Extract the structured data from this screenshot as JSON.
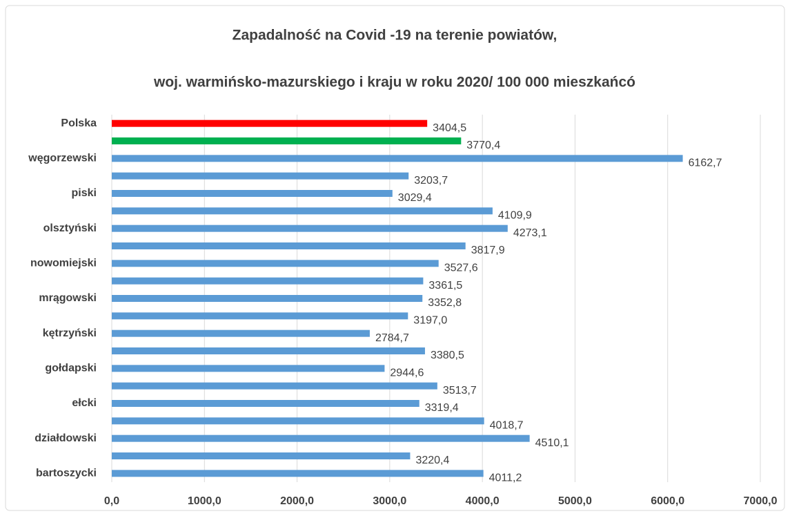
{
  "chart_data": {
    "type": "bar",
    "orientation": "horizontal",
    "title": [
      "Zapadalność na Covid -19 na terenie powiatów,",
      "woj. warmińsko-mazurskiego i kraju w roku 2020/ 100 000 mieszkańcó"
    ],
    "categories": [
      "Polska",
      null,
      "węgorzewski",
      null,
      "piski",
      null,
      "olsztyński",
      null,
      "nowomiejski",
      null,
      "mrągowski",
      null,
      "kętrzyński",
      null,
      "gołdapski",
      null,
      "ełcki",
      null,
      "działdowski",
      null,
      "bartoszycki"
    ],
    "values": [
      3404.5,
      3770.4,
      6162.7,
      3203.7,
      3029.4,
      4109.9,
      4273.1,
      3817.9,
      3527.6,
      3361.5,
      3352.8,
      3197.0,
      2784.7,
      3380.5,
      2944.6,
      3513.7,
      3319.4,
      4018.7,
      4510.1,
      3220.4,
      4011.2
    ],
    "value_labels": [
      "3404,5",
      "3770,4",
      "6162,7",
      "3203,7",
      "3029,4",
      "4109,9",
      "4273,1",
      "3817,9",
      "3527,6",
      "3361,5",
      "3352,8",
      "3197,0",
      "2784,7",
      "3380,5",
      "2944,6",
      "3513,7",
      "3319,4",
      "4018,7",
      "4510,1",
      "3220,4",
      "4011,2"
    ],
    "colors": [
      "#ff0000",
      "#00b050",
      "#5b9bd5",
      "#5b9bd5",
      "#5b9bd5",
      "#5b9bd5",
      "#5b9bd5",
      "#5b9bd5",
      "#5b9bd5",
      "#5b9bd5",
      "#5b9bd5",
      "#5b9bd5",
      "#5b9bd5",
      "#5b9bd5",
      "#5b9bd5",
      "#5b9bd5",
      "#5b9bd5",
      "#5b9bd5",
      "#5b9bd5",
      "#5b9bd5",
      "#5b9bd5"
    ],
    "xlim": [
      0,
      7000
    ],
    "xticks": [
      {
        "value": 0,
        "label": "0,0"
      },
      {
        "value": 1000,
        "label": "1000,0"
      },
      {
        "value": 2000,
        "label": "2000,0"
      },
      {
        "value": 3000,
        "label": "3000,0"
      },
      {
        "value": 4000,
        "label": "4000,0"
      },
      {
        "value": 5000,
        "label": "5000,0"
      },
      {
        "value": 6000,
        "label": "6000,0"
      },
      {
        "value": 7000,
        "label": "7000,0"
      }
    ],
    "grid": true
  }
}
